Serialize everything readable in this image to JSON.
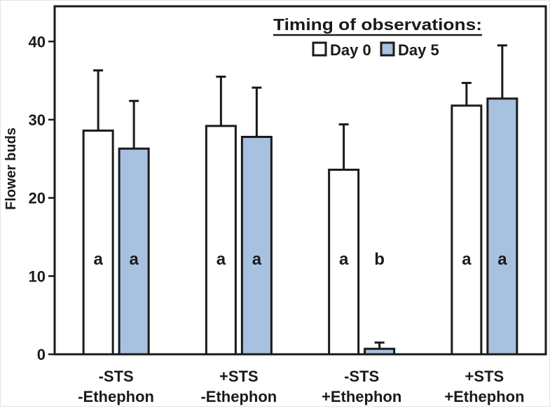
{
  "figure": {
    "background": "#ffffff"
  },
  "chart_data": {
    "type": "bar",
    "title": "",
    "ylabel": "Flower buds",
    "xlabel": "",
    "ylim": [
      0,
      44.5
    ],
    "yticks": [
      0,
      10,
      20,
      30,
      40
    ],
    "grid": false,
    "legend": {
      "title": "Timing of observations:",
      "position": "top-center-inside",
      "entries": [
        {
          "label": "Day 0",
          "swatch_color": "#ffffff"
        },
        {
          "label": "Day 5",
          "swatch_color": "#a7c1e0"
        }
      ]
    },
    "categories": [
      {
        "line1": "-STS",
        "line2": "-Ethephon"
      },
      {
        "line1": "+STS",
        "line2": "-Ethephon"
      },
      {
        "line1": "-STS",
        "line2": "+Ethephon"
      },
      {
        "line1": "+STS",
        "line2": "+Ethephon"
      }
    ],
    "series": [
      {
        "name": "Day 0",
        "fill": "#ffffff",
        "values": [
          28.6,
          29.2,
          23.6,
          31.8
        ],
        "errors_upper": [
          7.7,
          6.3,
          5.8,
          2.9
        ],
        "sig_letters": [
          "a",
          "a",
          "a",
          "a"
        ]
      },
      {
        "name": "Day 5",
        "fill": "#a7c1e0",
        "values": [
          26.3,
          27.8,
          0.7,
          32.7
        ],
        "errors_upper": [
          6.1,
          6.3,
          0.8,
          6.8
        ],
        "sig_letters": [
          "a",
          "a",
          "b",
          "a"
        ]
      }
    ],
    "colors": {
      "axis": "#1a1a1a",
      "bar_stroke": "#1a1a1a",
      "text": "#1a1a1a"
    }
  }
}
